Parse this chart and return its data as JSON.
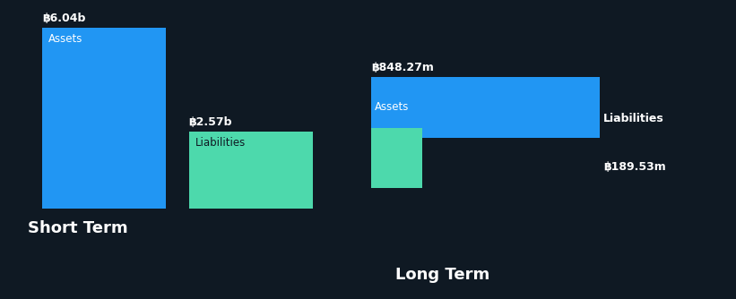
{
  "background_color": "#0f1923",
  "short_term": {
    "assets_value": 6.04,
    "assets_label": "฿6.04b",
    "assets_color": "#2196f3",
    "liabilities_value": 2.57,
    "liabilities_label": "฿2.57b",
    "liabilities_color": "#4dd9ac",
    "x_label": "Short Term",
    "bar_width": 0.35
  },
  "long_term": {
    "assets_value": 848.27,
    "assets_label": "฿848.27m",
    "assets_color": "#2196f3",
    "liabilities_value": 189.53,
    "liabilities_label": "฿189.53m",
    "liabilities_color": "#4dd9ac",
    "x_label": "Long Term",
    "bar_width": 0.35
  },
  "text_color": "#ffffff",
  "label_color_dark": "#0f1923",
  "font_size_value": 9,
  "font_size_bar_label": 8.5,
  "font_size_axis_label": 13
}
